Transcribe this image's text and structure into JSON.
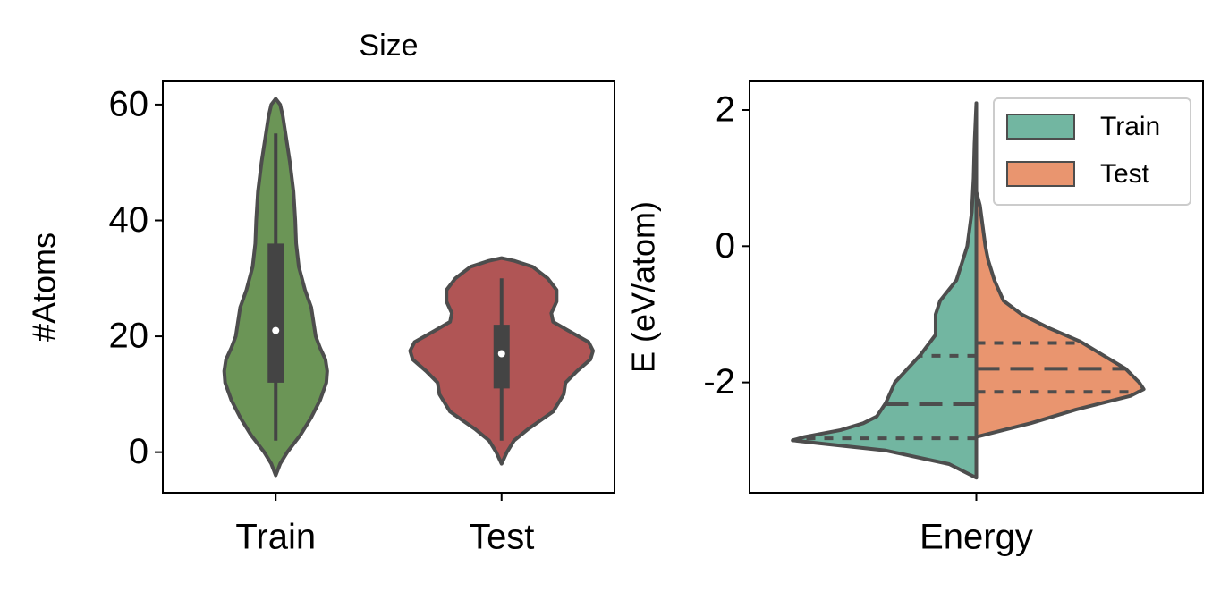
{
  "chart_data": [
    {
      "type": "violin",
      "title": "Size",
      "ylabel": "#Atoms",
      "categories": [
        "Train",
        "Test"
      ],
      "ylim": [
        -7,
        64
      ],
      "yticks": [
        0,
        20,
        40,
        60
      ],
      "edgecolor": "#4d4d4d",
      "violins": [
        {
          "color": "#6b9556",
          "kde": {
            "y": [
              -4,
              -2,
              0,
              3,
              6,
              9,
              12,
              14,
              16,
              18,
              20,
              22,
              25,
              28,
              32,
              36,
              40,
              45,
              50,
              55,
              58,
              60,
              61
            ],
            "width": [
              0,
              5,
              13,
              28,
              40,
              50,
              57,
              58,
              56,
              50,
              45,
              43,
              40,
              33,
              26,
              23,
              22,
              20,
              16,
              11,
              8,
              5,
              0
            ]
          },
          "box": {
            "whisker_low": 2,
            "q1": 12,
            "median": 21,
            "q3": 36,
            "whisker_high": 55
          }
        },
        {
          "color": "#b05555",
          "kde": {
            "y": [
              -2,
              0,
              2,
              4,
              7,
              10,
              12,
              14,
              16,
              17.5,
              19,
              21,
              22.5,
              24,
              26,
              28,
              30,
              32,
              33,
              33.5
            ],
            "width": [
              0,
              6,
              14,
              30,
              58,
              70,
              72,
              85,
              100,
              103,
              98,
              75,
              58,
              56,
              62,
              62,
              52,
              35,
              15,
              0
            ]
          },
          "box": {
            "whisker_low": 2,
            "q1": 11,
            "median": 17,
            "q3": 22,
            "whisker_high": 30
          }
        }
      ]
    },
    {
      "type": "split_violin",
      "ylabel": "E (eV/atom)",
      "categories": [
        "Energy"
      ],
      "ylim": [
        -3.62,
        2.42
      ],
      "yticks": [
        -2,
        0,
        2
      ],
      "edgecolor": "#4d4d4d",
      "legend": "upper right",
      "series": [
        {
          "name": "Train",
          "color": "#72b6a1",
          "side": "left",
          "kde": {
            "y": [
              -3.4,
              -3.2,
              -3.0,
              -2.9,
              -2.85,
              -2.8,
              -2.7,
              -2.6,
              -2.5,
              -2.3,
              -2.0,
              -1.6,
              -1.3,
              -1.0,
              -0.8,
              -0.5,
              0,
              0.5,
              1,
              1.5,
              2.1
            ],
            "width": [
              0,
              30,
              100,
              170,
              203,
              190,
              150,
              125,
              110,
              100,
              90,
              62,
              45,
              45,
              40,
              22,
              10,
              5,
              3,
              2,
              0
            ]
          },
          "quartiles": [
            -2.82,
            -2.32,
            -1.61
          ]
        },
        {
          "name": "Test",
          "color": "#e9956f",
          "side": "right",
          "kde": {
            "y": [
              -2.8,
              -2.6,
              -2.4,
              -2.2,
              -2.1,
              -2.0,
              -1.8,
              -1.6,
              -1.4,
              -1.2,
              -1.0,
              -0.8,
              -0.5,
              -0.2,
              0,
              0.3,
              0.6,
              0.8
            ],
            "width": [
              0,
              60,
              110,
              170,
              185,
              180,
              165,
              140,
              115,
              80,
              50,
              30,
              20,
              13,
              10,
              7,
              4,
              0
            ]
          },
          "quartiles": [
            -2.14,
            -1.8,
            -1.42
          ]
        }
      ]
    }
  ]
}
